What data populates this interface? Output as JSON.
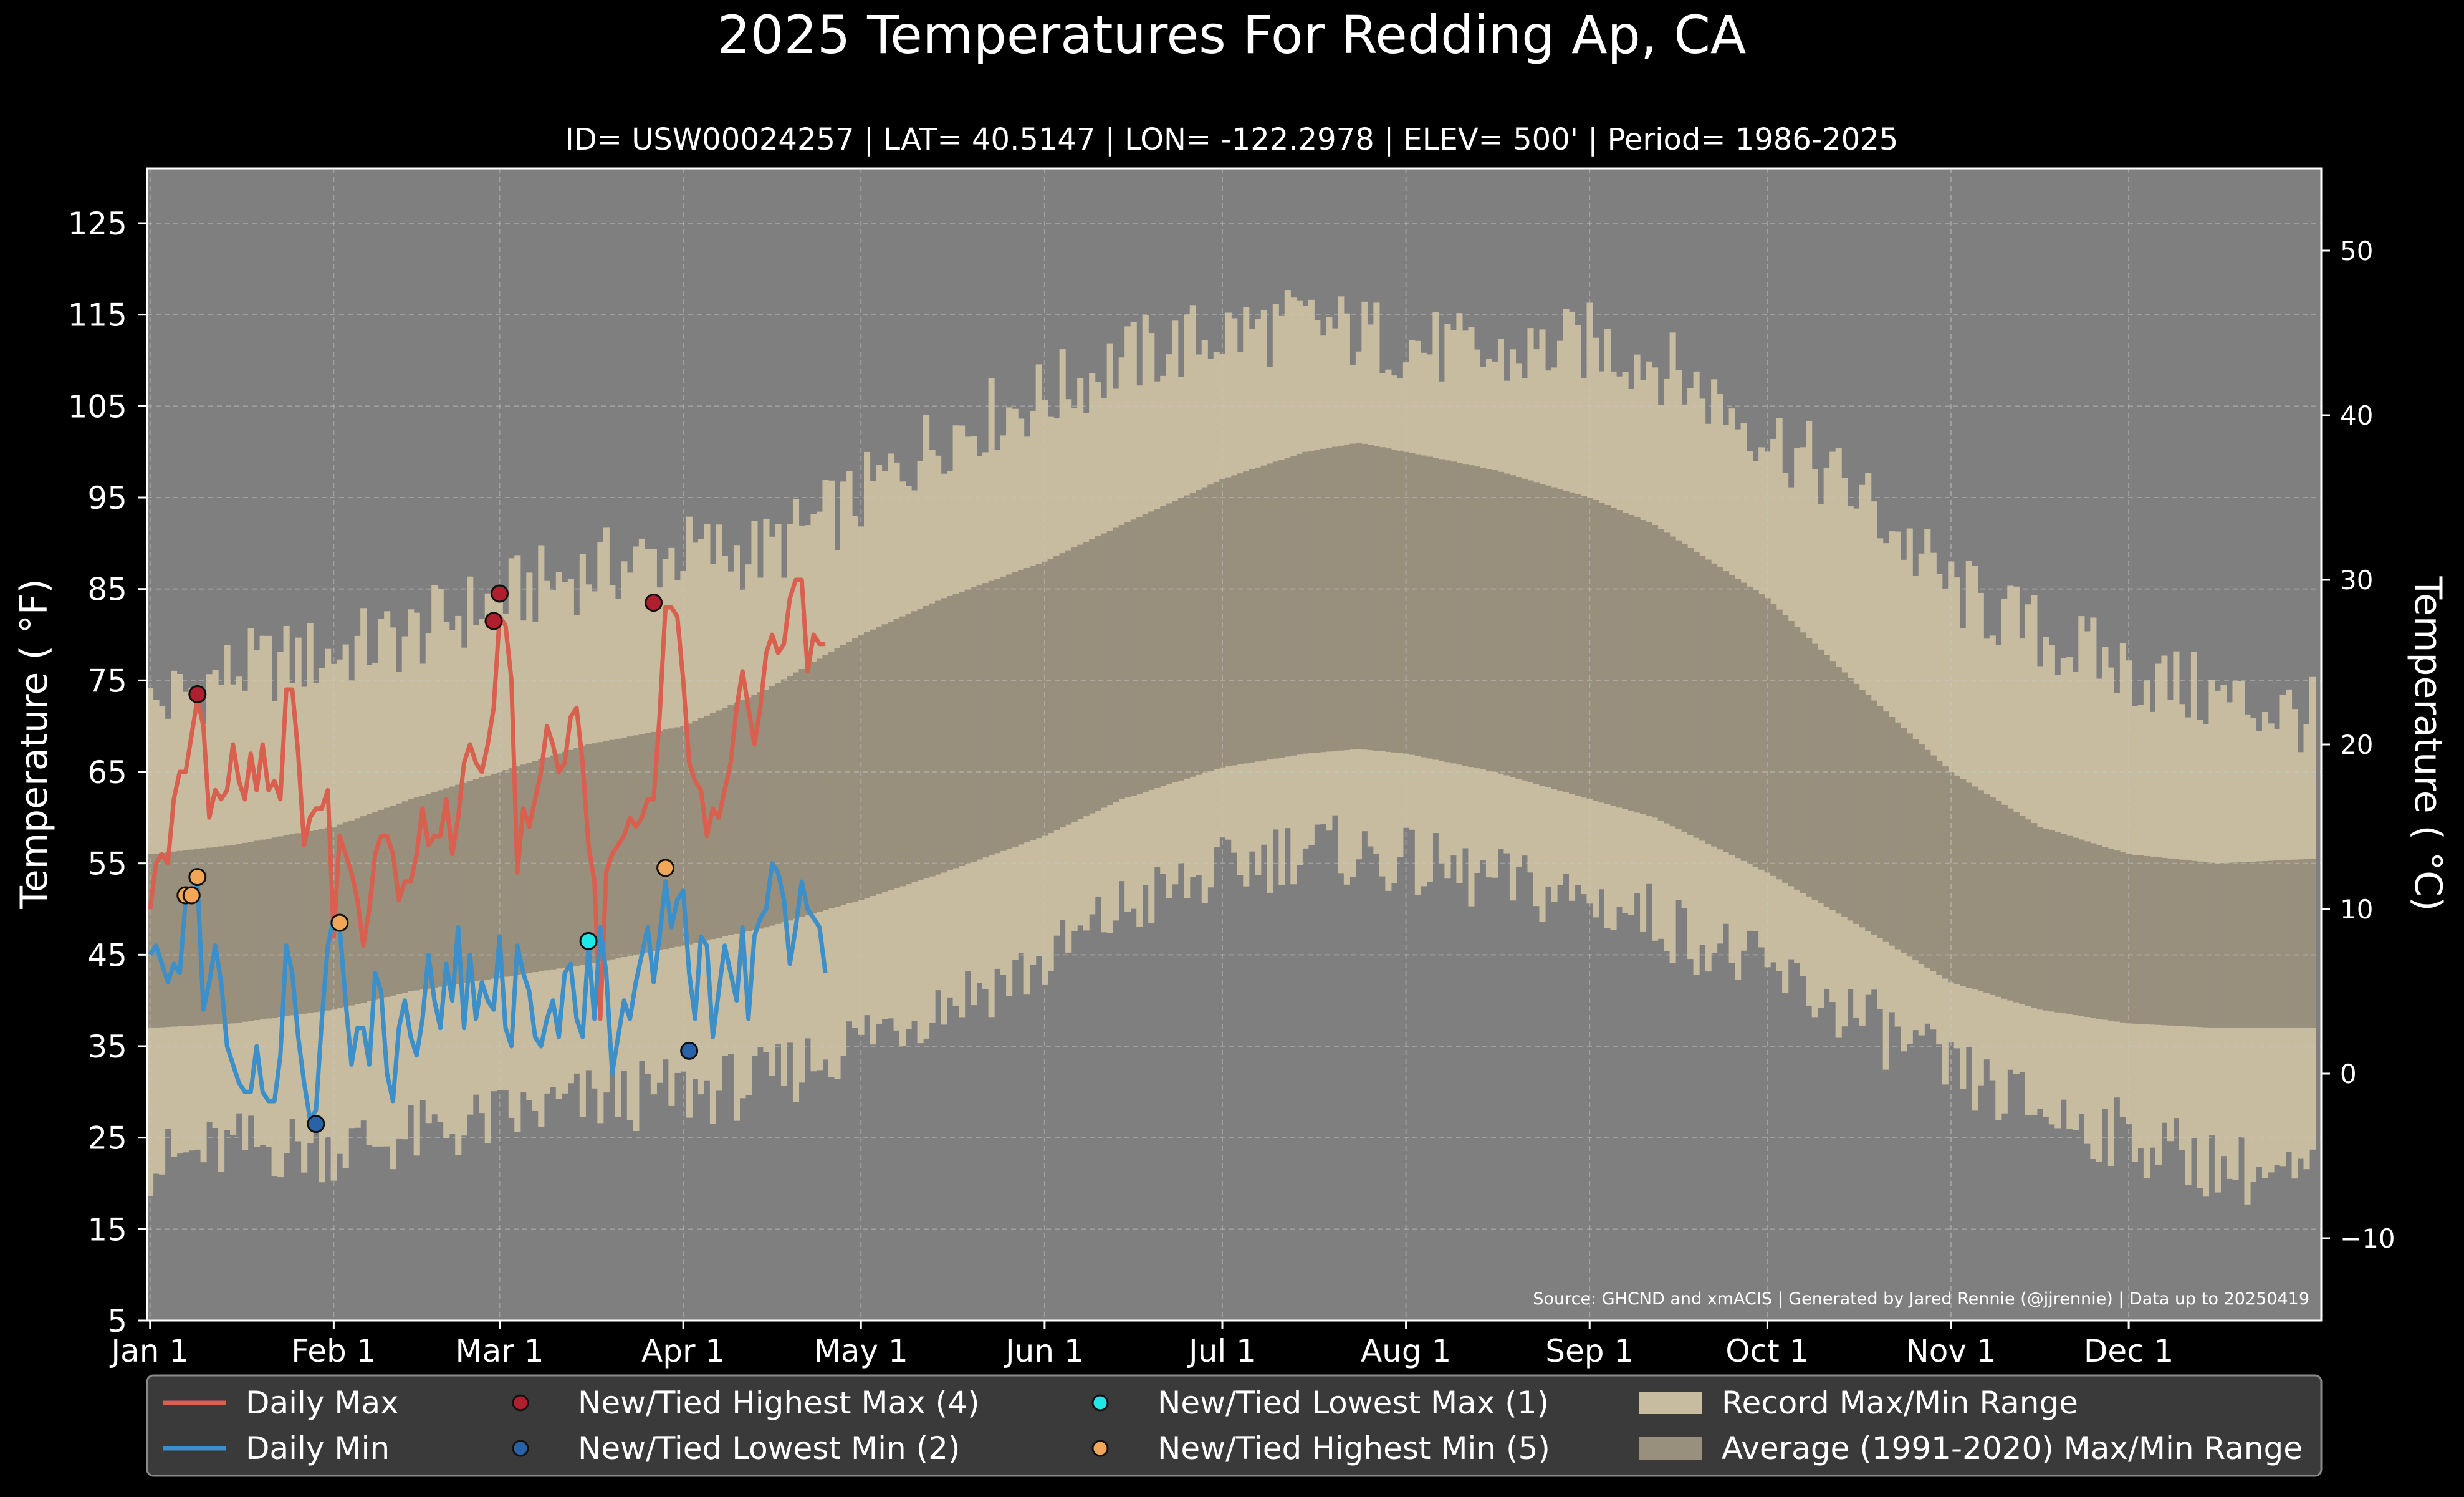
{
  "chart_data": {
    "type": "area",
    "title": "2025 Temperatures For Redding Ap, CA",
    "subtitle": "ID= USW00024257 | LAT= 40.5147 | LON= -122.2978 | ELEV= 500' | Period= 1986-2025",
    "ylabel": "Temperature ($^\\circ$F)",
    "ylabel_display": "Temperature ( °F)",
    "ylabel_right": "Temperature ( °C)",
    "source": "Source: GHCND and xmACIS | Generated by Jared Rennie (@jjrennie) | Data up to 20250419",
    "ylim": [
      5,
      131
    ],
    "ylim_right": [
      -15,
      55
    ],
    "grid": true,
    "legend_placement": "bottom",
    "colors": {
      "background": "#000000",
      "plot_bg": "#7f7f7f",
      "record_range": "#c7bca0",
      "normal_range": "#988f7d",
      "daily_max": "#d95f4e",
      "daily_min": "#3c8fc8",
      "highest_max": "#b01f2e",
      "lowest_min": "#2a62a8",
      "lowest_max": "#1fe8e8",
      "highest_min": "#f2a65a",
      "legend_bg": "#3a3a3a"
    },
    "x_ticks": [
      {
        "day": 1,
        "label": "Jan 1"
      },
      {
        "day": 32,
        "label": "Feb 1"
      },
      {
        "day": 60,
        "label": "Mar 1"
      },
      {
        "day": 91,
        "label": "Apr 1"
      },
      {
        "day": 121,
        "label": "May 1"
      },
      {
        "day": 152,
        "label": "Jun 1"
      },
      {
        "day": 182,
        "label": "Jul 1"
      },
      {
        "day": 213,
        "label": "Aug 1"
      },
      {
        "day": 244,
        "label": "Sep 1"
      },
      {
        "day": 274,
        "label": "Oct 1"
      },
      {
        "day": 305,
        "label": "Nov 1"
      },
      {
        "day": 335,
        "label": "Dec 1"
      }
    ],
    "y_ticks_left": [
      5,
      15,
      25,
      35,
      45,
      55,
      65,
      75,
      85,
      95,
      105,
      115,
      125
    ],
    "y_ticks_right": [
      -10,
      0,
      10,
      20,
      30,
      40,
      50
    ],
    "record_max_anchors": [
      [
        1,
        72
      ],
      [
        15,
        76
      ],
      [
        32,
        78
      ],
      [
        45,
        80
      ],
      [
        60,
        84
      ],
      [
        75,
        87
      ],
      [
        91,
        89
      ],
      [
        105,
        89
      ],
      [
        121,
        95
      ],
      [
        135,
        102
      ],
      [
        152,
        106
      ],
      [
        165,
        110
      ],
      [
        182,
        113
      ],
      [
        196,
        114
      ],
      [
        213,
        112
      ],
      [
        228,
        110
      ],
      [
        244,
        112
      ],
      [
        255,
        110
      ],
      [
        274,
        102
      ],
      [
        290,
        95
      ],
      [
        305,
        85
      ],
      [
        320,
        80
      ],
      [
        335,
        76
      ],
      [
        350,
        73
      ],
      [
        366,
        71
      ]
    ],
    "record_min_anchors": [
      [
        1,
        22
      ],
      [
        15,
        24
      ],
      [
        32,
        24
      ],
      [
        45,
        25
      ],
      [
        60,
        27
      ],
      [
        75,
        29
      ],
      [
        91,
        30
      ],
      [
        105,
        31
      ],
      [
        121,
        36
      ],
      [
        135,
        40
      ],
      [
        152,
        44
      ],
      [
        165,
        50
      ],
      [
        182,
        54
      ],
      [
        196,
        57
      ],
      [
        213,
        55
      ],
      [
        228,
        53
      ],
      [
        244,
        51
      ],
      [
        255,
        49
      ],
      [
        274,
        43
      ],
      [
        290,
        38
      ],
      [
        305,
        32
      ],
      [
        320,
        28
      ],
      [
        335,
        25
      ],
      [
        350,
        22
      ],
      [
        366,
        20
      ]
    ],
    "normal_max_anchors": [
      [
        1,
        56
      ],
      [
        15,
        57
      ],
      [
        32,
        59
      ],
      [
        45,
        62
      ],
      [
        60,
        65
      ],
      [
        75,
        68
      ],
      [
        91,
        70
      ],
      [
        105,
        74
      ],
      [
        121,
        80
      ],
      [
        135,
        84
      ],
      [
        152,
        88
      ],
      [
        165,
        92
      ],
      [
        182,
        97
      ],
      [
        196,
        100
      ],
      [
        205,
        101
      ],
      [
        213,
        100
      ],
      [
        228,
        98
      ],
      [
        244,
        95
      ],
      [
        255,
        92
      ],
      [
        274,
        84
      ],
      [
        290,
        74
      ],
      [
        305,
        65
      ],
      [
        320,
        59
      ],
      [
        335,
        56
      ],
      [
        350,
        55
      ],
      [
        366,
        55.5
      ]
    ],
    "normal_min_anchors": [
      [
        1,
        37
      ],
      [
        15,
        37.5
      ],
      [
        32,
        39
      ],
      [
        45,
        41
      ],
      [
        60,
        42.5
      ],
      [
        75,
        44
      ],
      [
        91,
        46
      ],
      [
        105,
        48
      ],
      [
        121,
        51
      ],
      [
        135,
        54
      ],
      [
        152,
        58
      ],
      [
        165,
        62
      ],
      [
        182,
        65.5
      ],
      [
        196,
        67
      ],
      [
        205,
        67.5
      ],
      [
        213,
        67
      ],
      [
        228,
        65
      ],
      [
        244,
        62
      ],
      [
        255,
        60
      ],
      [
        274,
        54
      ],
      [
        290,
        48
      ],
      [
        305,
        42
      ],
      [
        320,
        39
      ],
      [
        335,
        37.5
      ],
      [
        350,
        37
      ],
      [
        366,
        37
      ]
    ],
    "series": [
      {
        "name": "Daily Max",
        "start_day": 1,
        "values": [
          50,
          55,
          56,
          55,
          62,
          65,
          65,
          69,
          73,
          70,
          60,
          63,
          62,
          63,
          68,
          64,
          62,
          67,
          63,
          68,
          63,
          64,
          62,
          74,
          74,
          67,
          57,
          60,
          61,
          61,
          63,
          47,
          58,
          56,
          54,
          51,
          46,
          50,
          56,
          58,
          58,
          56,
          51,
          53,
          53,
          56,
          61,
          57,
          58,
          58,
          62,
          56,
          60,
          66,
          68,
          66,
          65,
          68,
          72,
          82,
          81,
          75,
          54,
          61,
          59,
          62,
          65,
          70,
          68,
          65,
          66,
          71,
          72,
          66,
          57,
          53,
          38,
          54,
          56,
          57,
          58,
          60,
          59,
          60,
          62,
          62,
          71,
          83,
          83,
          82,
          75,
          66,
          64,
          63,
          58,
          61,
          60,
          63,
          66,
          72,
          76,
          72,
          68,
          72,
          78,
          80,
          78,
          79,
          84,
          86,
          86,
          76,
          80,
          79,
          79
        ]
      },
      {
        "name": "Daily Min",
        "start_day": 1,
        "values": [
          45,
          46,
          44,
          42,
          44,
          43,
          51,
          51,
          53,
          39,
          42,
          46,
          42,
          35,
          33,
          31,
          30,
          30,
          35,
          30,
          29,
          29,
          34,
          46,
          43,
          36,
          31,
          27,
          28,
          38,
          46,
          49,
          48,
          40,
          33,
          37,
          37,
          33,
          43,
          41,
          32,
          29,
          37,
          40,
          36,
          34,
          38,
          45,
          40,
          37,
          44,
          40,
          48,
          37,
          45,
          38,
          42,
          40,
          39,
          47,
          37,
          35,
          46,
          43,
          41,
          36,
          35,
          38,
          40,
          36,
          43,
          44,
          38,
          36,
          46,
          38,
          48,
          43,
          32,
          36,
          40,
          38,
          42,
          45,
          48,
          42,
          47,
          53,
          48,
          51,
          52,
          43,
          38,
          47,
          46,
          36,
          41,
          46,
          43,
          40,
          48,
          38,
          47,
          49,
          50,
          55,
          54,
          51,
          44,
          48,
          53,
          50,
          49,
          48,
          43
        ]
      }
    ],
    "markers": {
      "highest_max": [
        [
          9,
          73.5
        ],
        [
          59,
          81.5
        ],
        [
          60,
          84.5
        ],
        [
          86,
          83.5
        ]
      ],
      "lowest_min": [
        [
          29,
          26.5
        ],
        [
          92,
          34.5
        ]
      ],
      "lowest_max": [
        [
          75,
          46.5
        ]
      ],
      "highest_min": [
        [
          7,
          51.5
        ],
        [
          8,
          51.5
        ],
        [
          9,
          53.5
        ],
        [
          33,
          48.5
        ],
        [
          88,
          54.5
        ]
      ]
    },
    "legend": [
      {
        "key": "daily-max",
        "label": "Daily Max",
        "kind": "line",
        "color": "#d95f4e"
      },
      {
        "key": "daily-min",
        "label": "Daily Min",
        "kind": "line",
        "color": "#3c8fc8"
      },
      {
        "key": "highest-max",
        "label": "New/Tied Highest Max (4)",
        "kind": "dot",
        "color": "#b01f2e"
      },
      {
        "key": "lowest-min",
        "label": "New/Tied Lowest Min (2)",
        "kind": "dot",
        "color": "#2a62a8"
      },
      {
        "key": "lowest-max",
        "label": "New/Tied Lowest Max (1)",
        "kind": "dot",
        "color": "#1fe8e8"
      },
      {
        "key": "highest-min",
        "label": "New/Tied Highest Min (5)",
        "kind": "dot",
        "color": "#f2a65a"
      },
      {
        "key": "record-range",
        "label": "Record Max/Min Range",
        "kind": "patch",
        "color": "#c7bca0"
      },
      {
        "key": "normal-range",
        "label": "Average (1991-2020) Max/Min Range",
        "kind": "patch",
        "color": "#988f7d"
      }
    ]
  }
}
